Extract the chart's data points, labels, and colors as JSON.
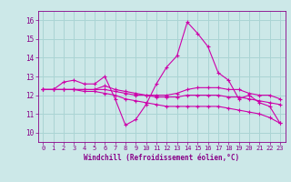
{
  "xlabel": "Windchill (Refroidissement éolien,°C)",
  "ylabel": "",
  "bg_color": "#cce8e8",
  "line_color": "#cc00aa",
  "grid_color": "#aad4d4",
  "text_color": "#880088",
  "xlim": [
    -0.5,
    23.5
  ],
  "ylim": [
    9.5,
    16.5
  ],
  "yticks": [
    10,
    11,
    12,
    13,
    14,
    15,
    16
  ],
  "xticks": [
    0,
    1,
    2,
    3,
    4,
    5,
    6,
    7,
    8,
    9,
    10,
    11,
    12,
    13,
    14,
    15,
    16,
    17,
    18,
    19,
    20,
    21,
    22,
    23
  ],
  "lines": [
    {
      "x": [
        0,
        1,
        2,
        3,
        4,
        5,
        6,
        7,
        8,
        9,
        10,
        11,
        12,
        13,
        14,
        15,
        16,
        17,
        18,
        19,
        20,
        21,
        22,
        23
      ],
      "y": [
        12.3,
        12.3,
        12.7,
        12.8,
        12.6,
        12.6,
        13.0,
        11.8,
        10.4,
        10.7,
        11.5,
        12.6,
        13.5,
        14.1,
        15.9,
        15.3,
        14.6,
        13.2,
        12.8,
        11.8,
        12.0,
        11.6,
        11.4,
        10.5
      ]
    },
    {
      "x": [
        0,
        1,
        2,
        3,
        4,
        5,
        6,
        7,
        8,
        9,
        10,
        11,
        12,
        13,
        14,
        15,
        16,
        17,
        18,
        19,
        20,
        21,
        22,
        23
      ],
      "y": [
        12.3,
        12.3,
        12.3,
        12.3,
        12.3,
        12.3,
        12.5,
        12.3,
        12.2,
        12.1,
        12.0,
        12.0,
        12.0,
        12.1,
        12.3,
        12.4,
        12.4,
        12.4,
        12.3,
        12.3,
        12.1,
        12.0,
        12.0,
        11.8
      ]
    },
    {
      "x": [
        0,
        1,
        2,
        3,
        4,
        5,
        6,
        7,
        8,
        9,
        10,
        11,
        12,
        13,
        14,
        15,
        16,
        17,
        18,
        19,
        20,
        21,
        22,
        23
      ],
      "y": [
        12.3,
        12.3,
        12.3,
        12.3,
        12.3,
        12.3,
        12.3,
        12.2,
        12.1,
        12.0,
        12.0,
        11.9,
        11.9,
        11.9,
        12.0,
        12.0,
        12.0,
        12.0,
        11.9,
        11.9,
        11.8,
        11.7,
        11.6,
        11.5
      ]
    },
    {
      "x": [
        0,
        1,
        2,
        3,
        4,
        5,
        6,
        7,
        8,
        9,
        10,
        11,
        12,
        13,
        14,
        15,
        16,
        17,
        18,
        19,
        20,
        21,
        22,
        23
      ],
      "y": [
        12.3,
        12.3,
        12.3,
        12.3,
        12.2,
        12.2,
        12.1,
        12.0,
        11.8,
        11.7,
        11.6,
        11.5,
        11.4,
        11.4,
        11.4,
        11.4,
        11.4,
        11.4,
        11.3,
        11.2,
        11.1,
        11.0,
        10.8,
        10.5
      ]
    }
  ]
}
